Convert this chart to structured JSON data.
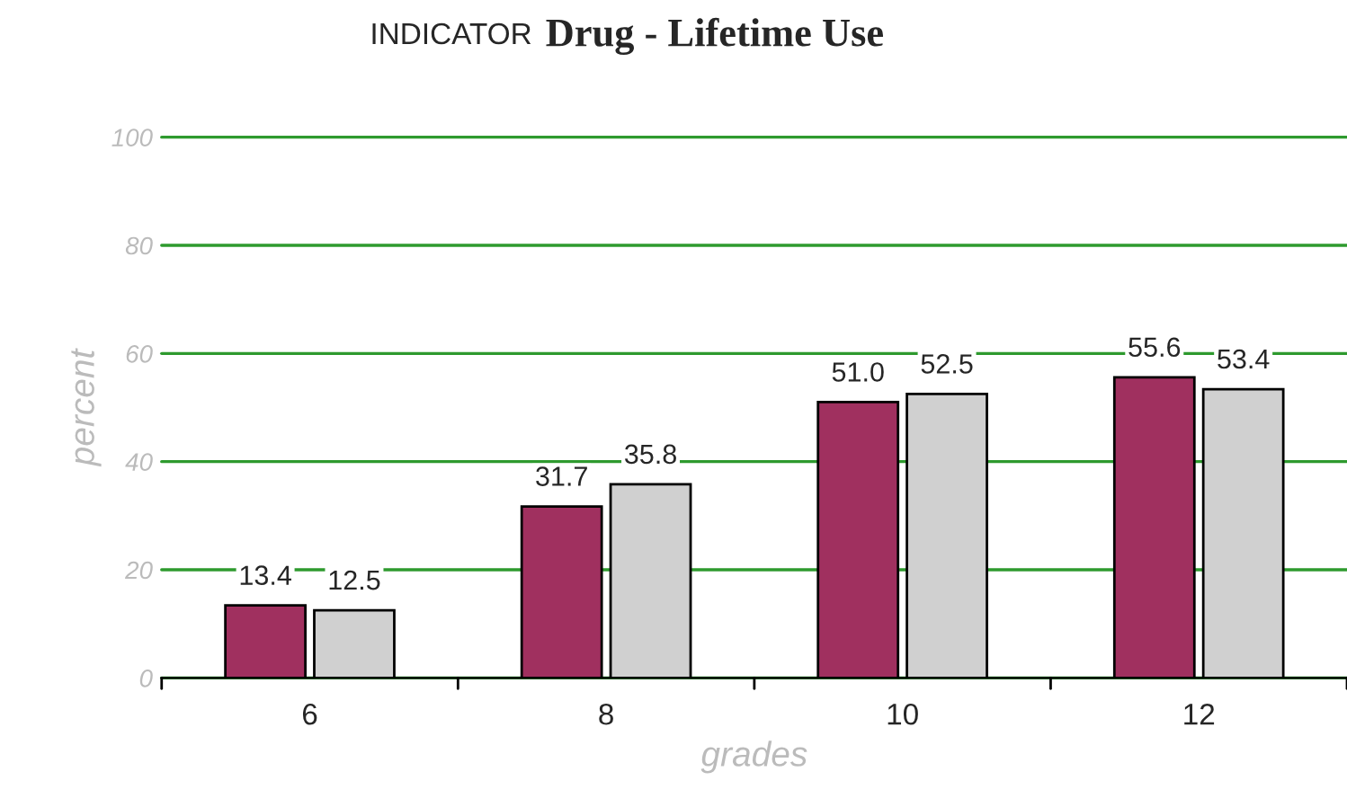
{
  "chart_data": {
    "type": "bar",
    "title": "INDICATOR",
    "subtitle": "Drug - Lifetime Use",
    "xlabel": "grades",
    "ylabel": "percent",
    "categories": [
      "6",
      "8",
      "10",
      "12"
    ],
    "series": [
      {
        "color": "#a0305f",
        "values": [
          13.4,
          31.7,
          51.0,
          55.6
        ],
        "value_labels": [
          "13.4",
          "31.7",
          "51.0",
          "55.6"
        ]
      },
      {
        "color": "#d0d0d0",
        "values": [
          12.5,
          35.8,
          52.5,
          53.4
        ],
        "value_labels": [
          "12.5",
          "35.8",
          "52.5",
          "53.4"
        ]
      }
    ],
    "ylim": [
      0,
      100
    ],
    "yticks": [
      0,
      20,
      40,
      60,
      80,
      100
    ],
    "grid": "y",
    "legend": false
  }
}
